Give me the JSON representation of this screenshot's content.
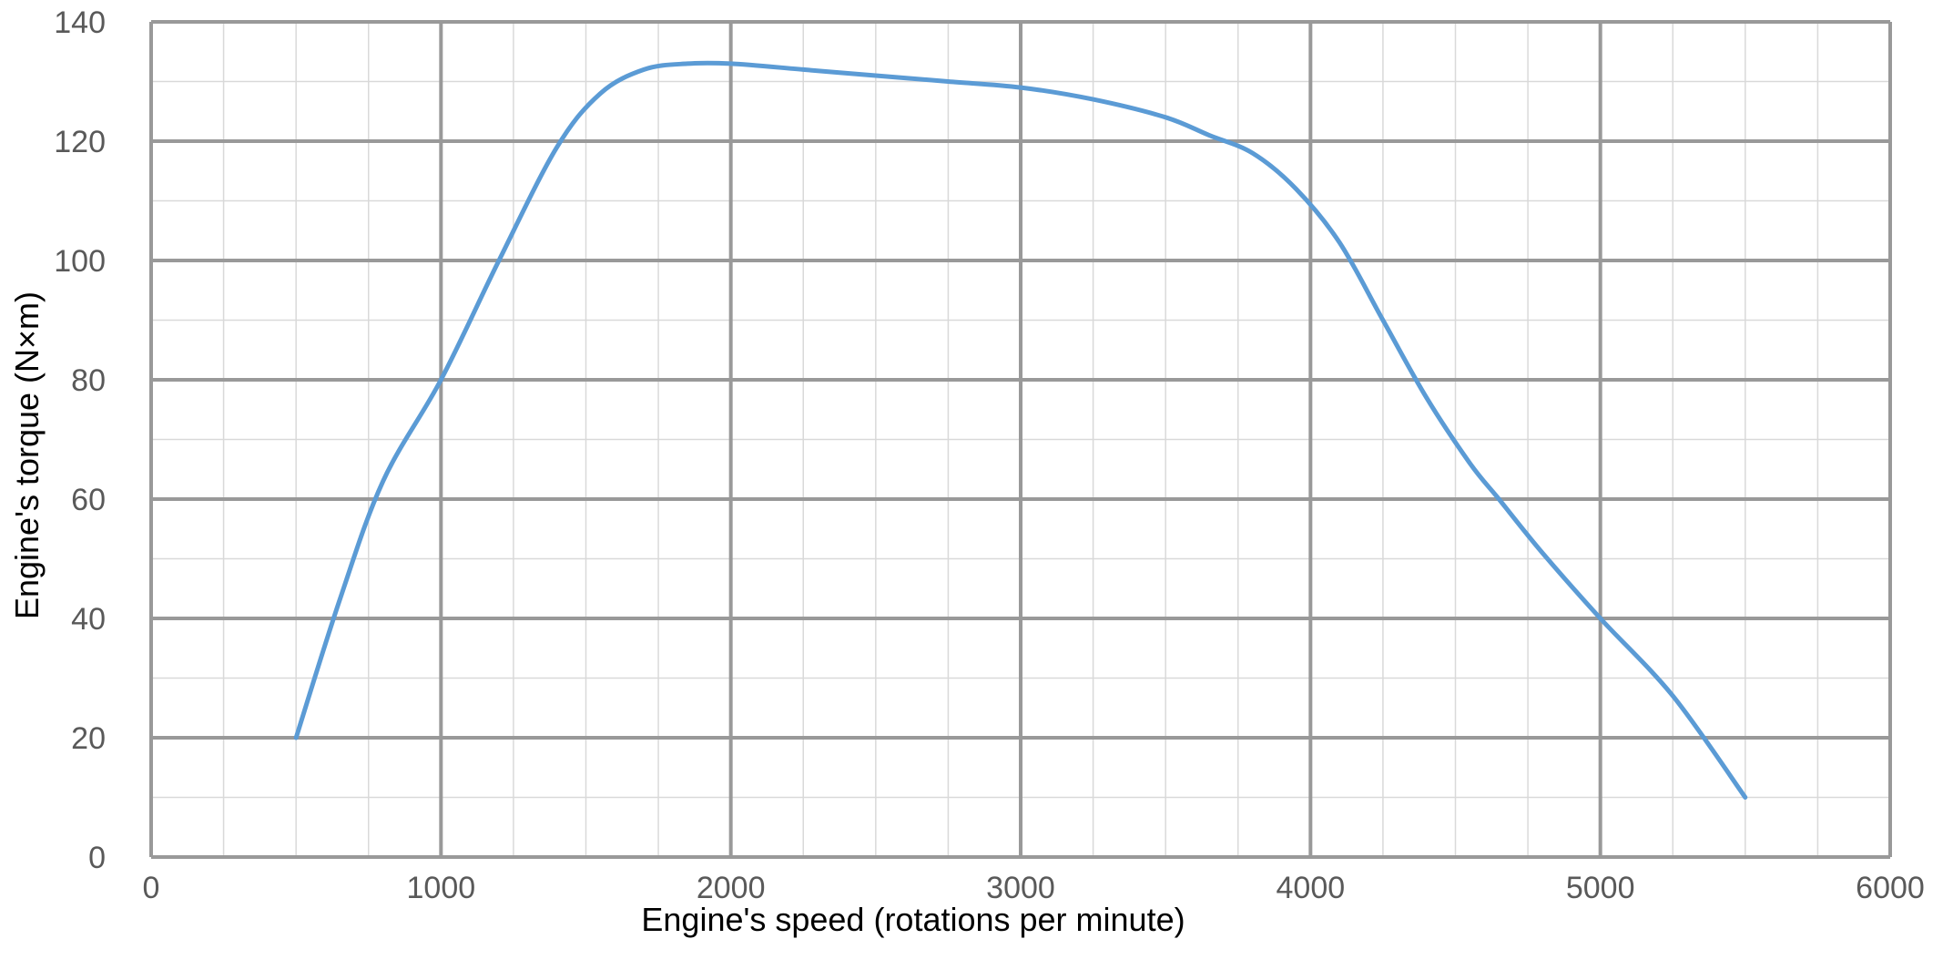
{
  "chart_data": {
    "type": "line",
    "title": "",
    "xlabel": "Engine's speed (rotations per minute)",
    "ylabel": "Engine's torque (N×m)",
    "xlim": [
      0,
      6000
    ],
    "ylim": [
      0,
      140
    ],
    "x_ticks": [
      "0",
      "1000",
      "2000",
      "3000",
      "4000",
      "5000",
      "6000"
    ],
    "y_ticks": [
      "0",
      "20",
      "40",
      "60",
      "80",
      "100",
      "120",
      "140"
    ],
    "grid": true,
    "legend": "none",
    "colors": {
      "series": "#5b9bd5",
      "major_grid": "#999999",
      "minor_grid": "#d9d9d9",
      "tick_text": "#595959",
      "axis_title": "#000000"
    },
    "series": [
      {
        "x": [
          500,
          650,
          800,
          1000,
          1200,
          1400,
          1550,
          1700,
          1850,
          2000,
          2250,
          2500,
          2750,
          3000,
          3250,
          3500,
          3650,
          3800,
          3950,
          4100,
          4250,
          4400,
          4550,
          4650,
          4800,
          5000,
          5250,
          5500
        ],
        "values": [
          20,
          43,
          63,
          80,
          100,
          119,
          128,
          132,
          133,
          133,
          132,
          131,
          130,
          129,
          127,
          124,
          121,
          118,
          112,
          103,
          90,
          77,
          66,
          60,
          51,
          40,
          27,
          10
        ]
      }
    ]
  }
}
